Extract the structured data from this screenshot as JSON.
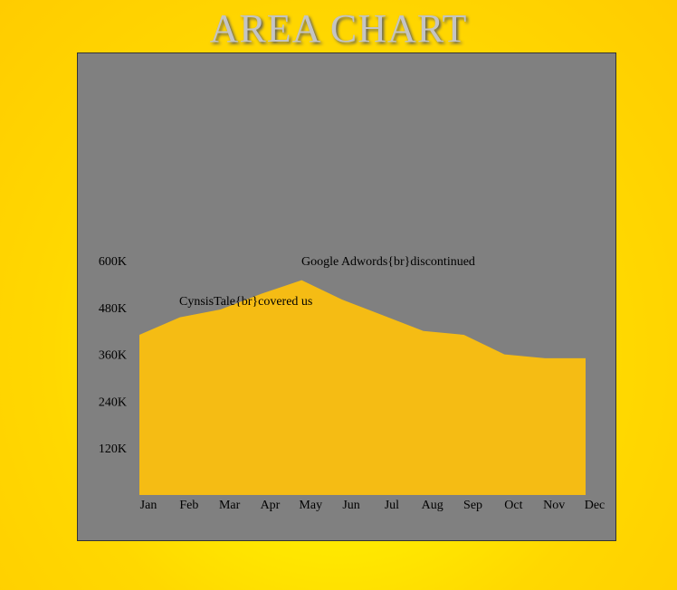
{
  "chart_data": {
    "type": "area",
    "title": "AREA CHART",
    "categories": [
      "Jan",
      "Feb",
      "Mar",
      "Apr",
      "May",
      "Jun",
      "Jul",
      "Aug",
      "Sep",
      "Oct",
      "Nov",
      "Dec"
    ],
    "values": [
      410000,
      455000,
      475000,
      515000,
      550000,
      500000,
      460000,
      420000,
      410000,
      360000,
      350000,
      350000
    ],
    "ylim": [
      0,
      600000
    ],
    "yticks": [
      "120K",
      "240K",
      "360K",
      "480K",
      "600K"
    ],
    "annotations": [
      {
        "text": "CynsisTale{br}covered us",
        "category": "Feb"
      },
      {
        "text": "Google Adwords{br}discontinued",
        "category": "May"
      }
    ],
    "colors": {
      "area": "#f5bc14",
      "plot_background": "#808080"
    },
    "grid": false
  }
}
